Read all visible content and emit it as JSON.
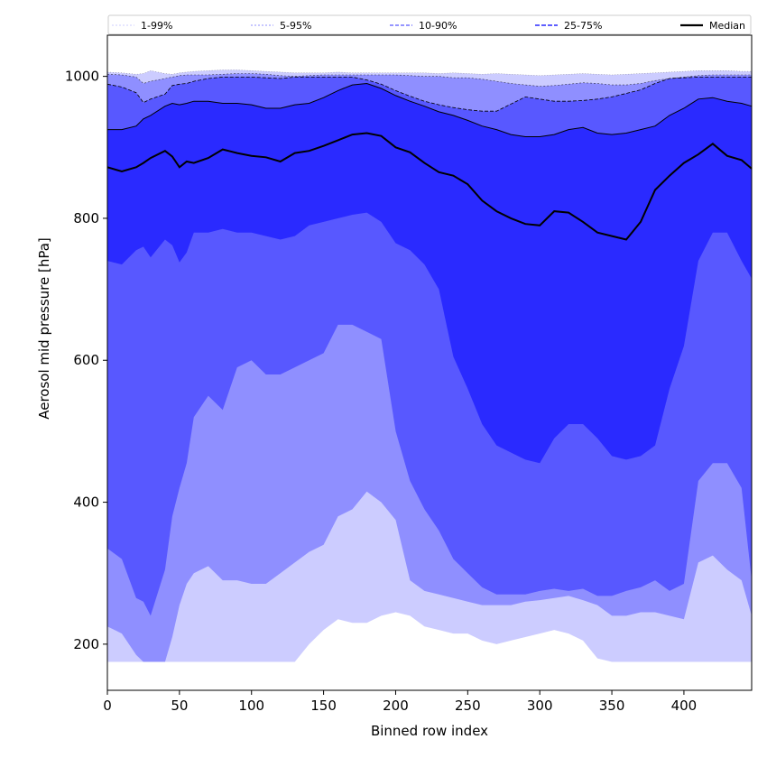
{
  "chart_data": {
    "type": "area",
    "xlabel": "Binned row index",
    "ylabel": "Aerosol mid pressure [hPa]",
    "xlim": [
      0,
      447
    ],
    "ylim": [
      135,
      1058
    ],
    "x_ticks": [
      0,
      50,
      100,
      150,
      200,
      250,
      300,
      350,
      400
    ],
    "y_ticks": [
      200,
      400,
      600,
      800,
      1000
    ],
    "grid": false,
    "legend_position": "top, outside axes, single row",
    "x": [
      0,
      10,
      20,
      25,
      30,
      40,
      45,
      50,
      55,
      60,
      70,
      80,
      90,
      100,
      110,
      120,
      130,
      140,
      150,
      160,
      170,
      180,
      190,
      200,
      210,
      220,
      230,
      240,
      250,
      260,
      270,
      280,
      290,
      300,
      310,
      320,
      330,
      340,
      350,
      360,
      370,
      380,
      390,
      400,
      410,
      420,
      430,
      440,
      447
    ],
    "series": [
      {
        "name": "1-99%",
        "band": "outer",
        "color": "#ccccff",
        "lower": [
          175,
          175,
          175,
          175,
          175,
          175,
          175,
          175,
          175,
          175,
          175,
          175,
          175,
          175,
          175,
          175,
          175,
          200,
          220,
          235,
          230,
          230,
          240,
          245,
          240,
          225,
          220,
          215,
          215,
          205,
          200,
          205,
          210,
          215,
          220,
          215,
          205,
          180,
          175,
          175,
          175,
          175,
          175,
          175,
          175,
          175,
          175,
          175,
          175
        ],
        "upper": [
          1006,
          1005,
          1003,
          1004,
          1008,
          1004,
          1003,
          1005,
          1006,
          1007,
          1008,
          1009,
          1009,
          1008,
          1007,
          1006,
          1005,
          1005,
          1005,
          1006,
          1005,
          1005,
          1005,
          1005,
          1005,
          1005,
          1004,
          1005,
          1004,
          1003,
          1004,
          1003,
          1002,
          1001,
          1002,
          1003,
          1004,
          1003,
          1002,
          1003,
          1004,
          1005,
          1006,
          1007,
          1008,
          1008,
          1008,
          1007,
          1007
        ]
      },
      {
        "name": "5-95%",
        "band": "outer",
        "color": "#8f8fff",
        "lower": [
          225,
          215,
          185,
          175,
          175,
          175,
          210,
          255,
          285,
          300,
          310,
          290,
          290,
          285,
          285,
          300,
          315,
          330,
          340,
          380,
          390,
          415,
          400,
          375,
          290,
          275,
          270,
          265,
          260,
          255,
          255,
          255,
          260,
          262,
          265,
          268,
          262,
          255,
          240,
          240,
          245,
          245,
          240,
          235,
          315,
          325,
          305,
          290,
          240
        ],
        "upper": [
          1003,
          1002,
          999,
          990,
          993,
          997,
          999,
          1001,
          1002,
          1002,
          1002,
          1003,
          1004,
          1004,
          1003,
          1001,
          1000,
          1001,
          1002,
          1002,
          1002,
          1002,
          1002,
          1002,
          1001,
          1000,
          1000,
          998,
          998,
          996,
          993,
          990,
          988,
          986,
          987,
          989,
          991,
          990,
          988,
          988,
          990,
          994,
          997,
          999,
          1001,
          1002,
          1002,
          1002,
          1002
        ]
      },
      {
        "name": "10-90%",
        "band": "inner",
        "color": "#5858ff",
        "lower": [
          335,
          320,
          265,
          260,
          240,
          305,
          380,
          420,
          455,
          520,
          550,
          530,
          590,
          600,
          580,
          580,
          590,
          600,
          610,
          650,
          650,
          640,
          630,
          500,
          430,
          390,
          360,
          320,
          300,
          280,
          270,
          270,
          270,
          275,
          278,
          275,
          278,
          268,
          268,
          275,
          280,
          290,
          275,
          285,
          430,
          455,
          455,
          420,
          290
        ],
        "upper": [
          989,
          985,
          977,
          963,
          968,
          975,
          987,
          989,
          990,
          993,
          997,
          999,
          999,
          999,
          998,
          997,
          999,
          999,
          999,
          999,
          999,
          995,
          989,
          980,
          972,
          965,
          960,
          956,
          953,
          951,
          951,
          961,
          971,
          968,
          965,
          965,
          966,
          968,
          971,
          976,
          981,
          990,
          997,
          998,
          999,
          999,
          999,
          999,
          999
        ]
      },
      {
        "name": "25-75%",
        "band": "inner",
        "color": "#2a2aff",
        "lower": [
          740,
          735,
          755,
          760,
          745,
          770,
          762,
          738,
          752,
          780,
          780,
          785,
          780,
          780,
          775,
          770,
          775,
          790,
          795,
          800,
          805,
          808,
          795,
          765,
          755,
          735,
          700,
          605,
          560,
          510,
          480,
          470,
          460,
          455,
          490,
          510,
          510,
          490,
          465,
          460,
          465,
          480,
          560,
          620,
          740,
          780,
          780,
          740,
          715
        ],
        "upper": [
          925,
          925,
          930,
          940,
          945,
          958,
          962,
          960,
          962,
          965,
          965,
          962,
          962,
          960,
          955,
          955,
          960,
          962,
          970,
          980,
          988,
          990,
          983,
          973,
          965,
          958,
          950,
          945,
          938,
          930,
          925,
          918,
          915,
          915,
          918,
          925,
          928,
          920,
          918,
          920,
          925,
          930,
          945,
          955,
          968,
          970,
          965,
          962,
          958
        ]
      },
      {
        "name": "Median",
        "band": "line",
        "color": "#000000",
        "values": [
          872,
          866,
          872,
          878,
          885,
          895,
          887,
          872,
          880,
          878,
          885,
          897,
          892,
          888,
          886,
          880,
          892,
          895,
          902,
          910,
          918,
          920,
          916,
          900,
          893,
          878,
          865,
          860,
          848,
          825,
          810,
          800,
          792,
          790,
          810,
          808,
          795,
          780,
          775,
          770,
          795,
          840,
          860,
          878,
          890,
          905,
          888,
          882,
          870
        ]
      }
    ]
  }
}
